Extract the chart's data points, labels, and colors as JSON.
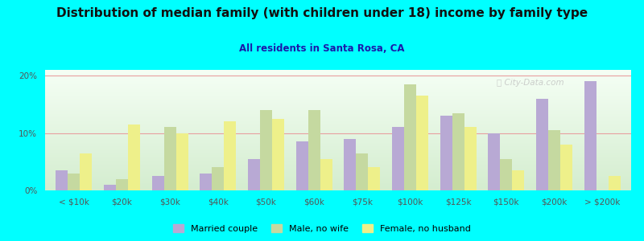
{
  "title": "Distribution of median family (with children under 18) income by family type",
  "subtitle": "All residents in Santa Rosa, CA",
  "categories": [
    "< $10k",
    "$20k",
    "$30k",
    "$40k",
    "$50k",
    "$60k",
    "$75k",
    "$100k",
    "$125k",
    "$150k",
    "$200k",
    "> $200k"
  ],
  "married_couple": [
    3.5,
    1.0,
    2.5,
    3.0,
    5.5,
    8.5,
    9.0,
    11.0,
    13.0,
    10.0,
    16.0,
    19.0
  ],
  "male_no_wife": [
    3.0,
    2.0,
    11.0,
    4.0,
    14.0,
    14.0,
    6.5,
    18.5,
    13.5,
    5.5,
    10.5,
    0.0
  ],
  "female_no_husband": [
    6.5,
    11.5,
    10.0,
    12.0,
    12.5,
    5.5,
    4.0,
    16.5,
    11.0,
    3.5,
    8.0,
    2.5
  ],
  "married_color": "#b8a9d4",
  "male_color": "#c5d9a0",
  "female_color": "#eef08a",
  "bg_color": "#00ffff",
  "ylim": [
    0,
    21
  ],
  "yticks": [
    0,
    10,
    20
  ],
  "yticklabels": [
    "0%",
    "10%",
    "20%"
  ],
  "grid_color": "#e8a0a0",
  "watermark": "City-Data.com",
  "legend_labels": [
    "Married couple",
    "Male, no wife",
    "Female, no husband"
  ],
  "title_fontsize": 11,
  "subtitle_fontsize": 8.5,
  "tick_fontsize": 7.5
}
